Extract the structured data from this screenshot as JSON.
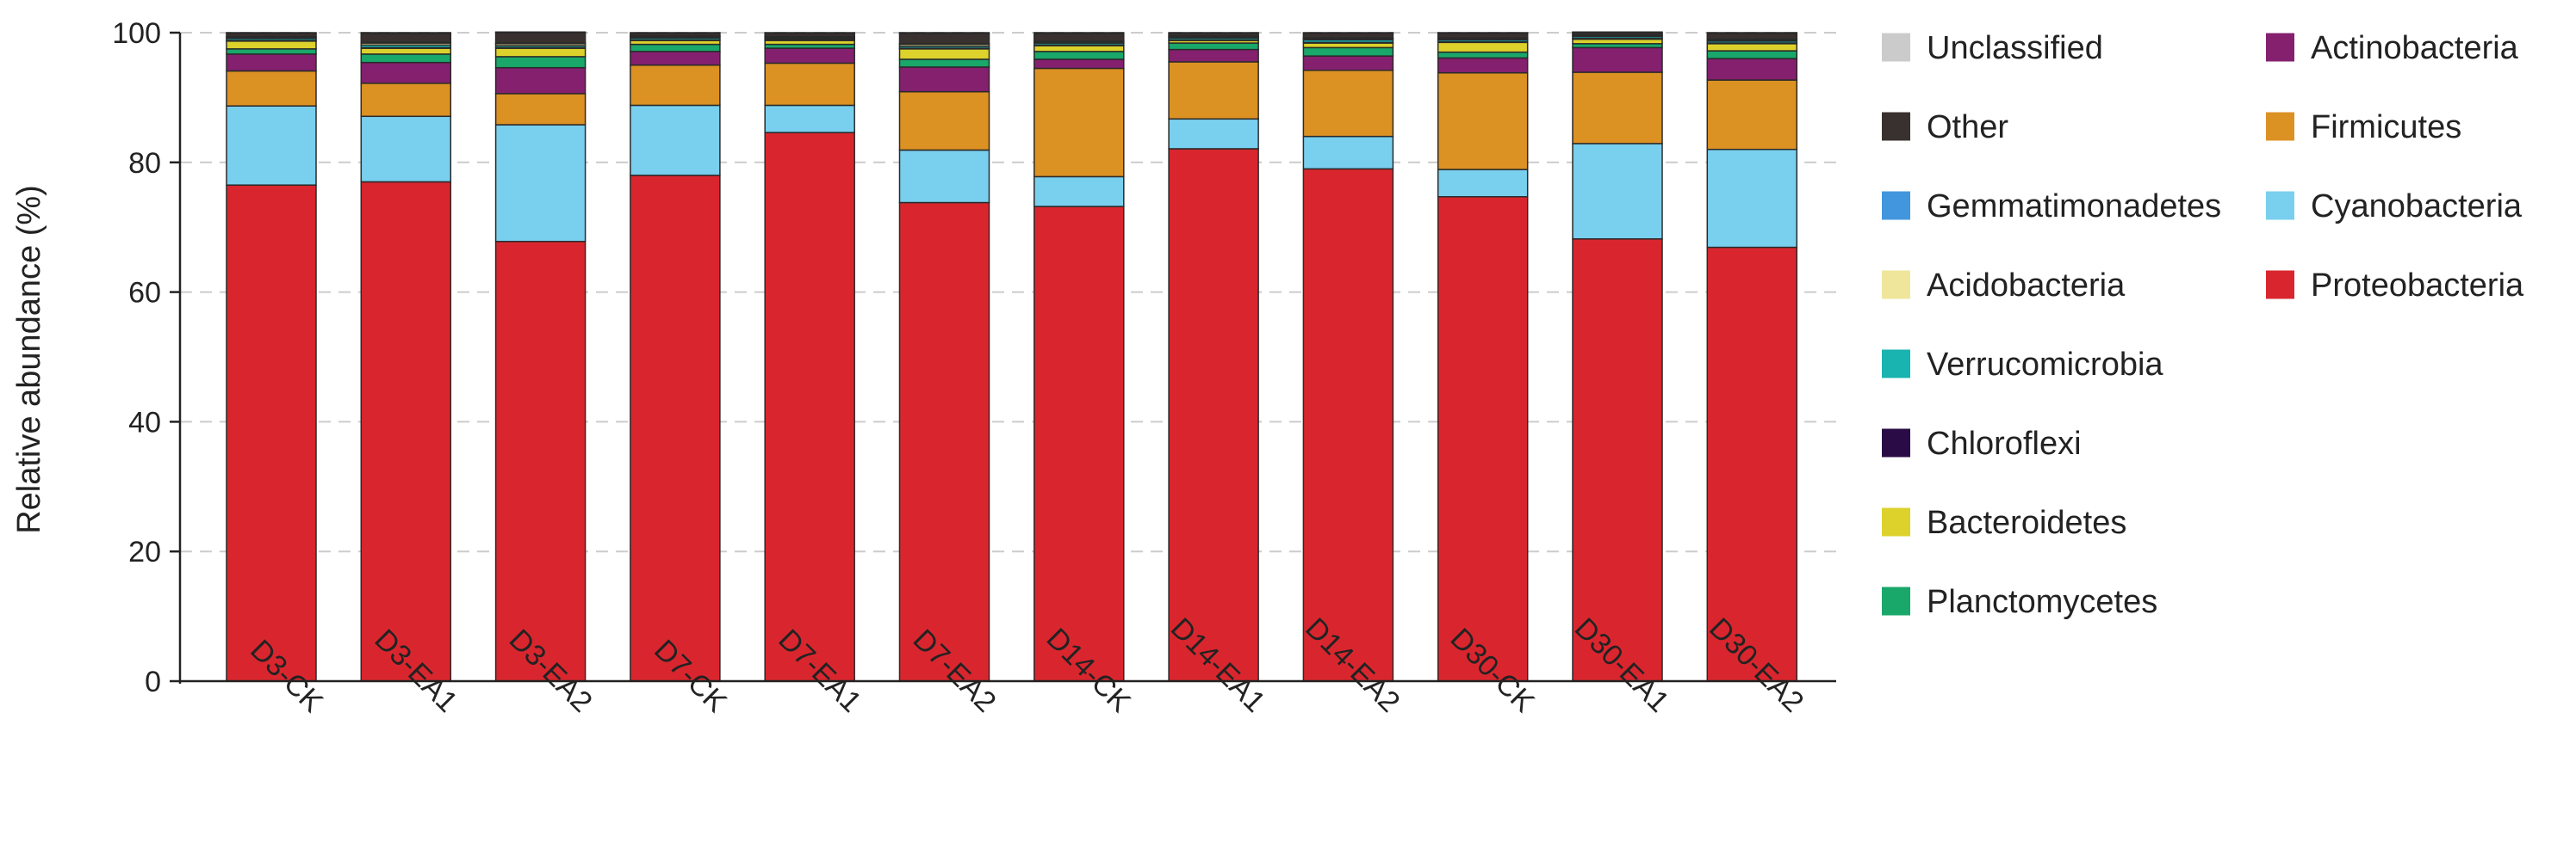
{
  "chart_data": {
    "type": "bar",
    "stacked": true,
    "ylabel": "Relative abundance (%)",
    "ylim": [
      0,
      100
    ],
    "yticks": [
      0,
      20,
      40,
      60,
      80,
      100
    ],
    "grid": "horizontal dashed",
    "legend_position": "right",
    "categories": [
      "D3-CK",
      "D3-EA1",
      "D3-EA2",
      "D7-CK",
      "D7-EA1",
      "D7-EA2",
      "D14-CK",
      "D14-EA1",
      "D14-EA2",
      "D30-CK",
      "D30-EA1",
      "D30-EA2"
    ],
    "series": [
      {
        "name": "Proteobacteria",
        "color": "#d9262e",
        "values": [
          76.5,
          77.0,
          67.8,
          78.0,
          84.6,
          73.8,
          73.2,
          82.1,
          79.0,
          74.7,
          68.2,
          66.9
        ]
      },
      {
        "name": "Cyanobacteria",
        "color": "#79cfee",
        "values": [
          12.2,
          10.1,
          18.0,
          10.8,
          4.2,
          8.1,
          4.6,
          4.6,
          5.0,
          4.2,
          14.7,
          15.1
        ]
      },
      {
        "name": "Firmicutes",
        "color": "#dc9123",
        "values": [
          5.4,
          5.1,
          4.8,
          6.2,
          6.5,
          9.0,
          16.7,
          8.8,
          10.2,
          14.9,
          11.0,
          10.7
        ]
      },
      {
        "name": "Actinobacteria",
        "color": "#85206f",
        "values": [
          2.6,
          3.2,
          4.0,
          2.1,
          2.3,
          3.8,
          1.4,
          1.9,
          2.2,
          2.3,
          3.8,
          3.3
        ]
      },
      {
        "name": "Planctomycetes",
        "color": "#19a76a",
        "values": [
          0.8,
          1.3,
          1.7,
          1.1,
          0.6,
          1.2,
          1.2,
          1.0,
          1.3,
          0.9,
          0.6,
          1.2
        ]
      },
      {
        "name": "Bacteroidetes",
        "color": "#ddd12b",
        "values": [
          1.2,
          0.9,
          1.3,
          0.6,
          0.6,
          1.6,
          0.9,
          0.4,
          0.7,
          1.5,
          0.7,
          1.1
        ]
      },
      {
        "name": "Chloroflexi",
        "color": "#2a0b45",
        "values": [
          0.1,
          0.1,
          0.1,
          0.1,
          0.1,
          0.1,
          0.1,
          0.1,
          0.1,
          0.1,
          0.1,
          0.1
        ]
      },
      {
        "name": "Verrucomicrobia",
        "color": "#19b3b0",
        "values": [
          0.3,
          0.4,
          0.3,
          0.3,
          0.2,
          0.3,
          0.3,
          0.3,
          0.4,
          0.3,
          0.3,
          0.3
        ]
      },
      {
        "name": "Acidobacteria",
        "color": "#efe69c",
        "values": [
          0.2,
          0.3,
          0.3,
          0.2,
          0.2,
          0.3,
          0.2,
          0.2,
          0.2,
          0.2,
          0.2,
          0.2
        ]
      },
      {
        "name": "Gemmatimonadetes",
        "color": "#4296dd",
        "values": [
          0.1,
          0.1,
          0.1,
          0.1,
          0.1,
          0.1,
          0.1,
          0.1,
          0.1,
          0.1,
          0.1,
          0.1
        ]
      },
      {
        "name": "Other",
        "color": "#39312f",
        "values": [
          0.5,
          1.4,
          1.6,
          0.4,
          0.5,
          1.6,
          1.2,
          0.4,
          0.7,
          0.7,
          0.3,
          0.9
        ]
      },
      {
        "name": "Unclassified",
        "color": "#cbcbcb",
        "values": [
          0.1,
          0.1,
          0.1,
          0.1,
          0.1,
          0.1,
          0.1,
          0.1,
          0.1,
          0.1,
          0.1,
          0.1
        ]
      }
    ],
    "legend_columns": [
      [
        "Unclassified",
        "Other",
        "Gemmatimonadetes",
        "Acidobacteria",
        "Verrucomicrobia",
        "Chloroflexi",
        "Bacteroidetes",
        "Planctomycetes"
      ],
      [
        "Actinobacteria",
        "Firmicutes",
        "Cyanobacteria",
        "Proteobacteria"
      ]
    ]
  }
}
